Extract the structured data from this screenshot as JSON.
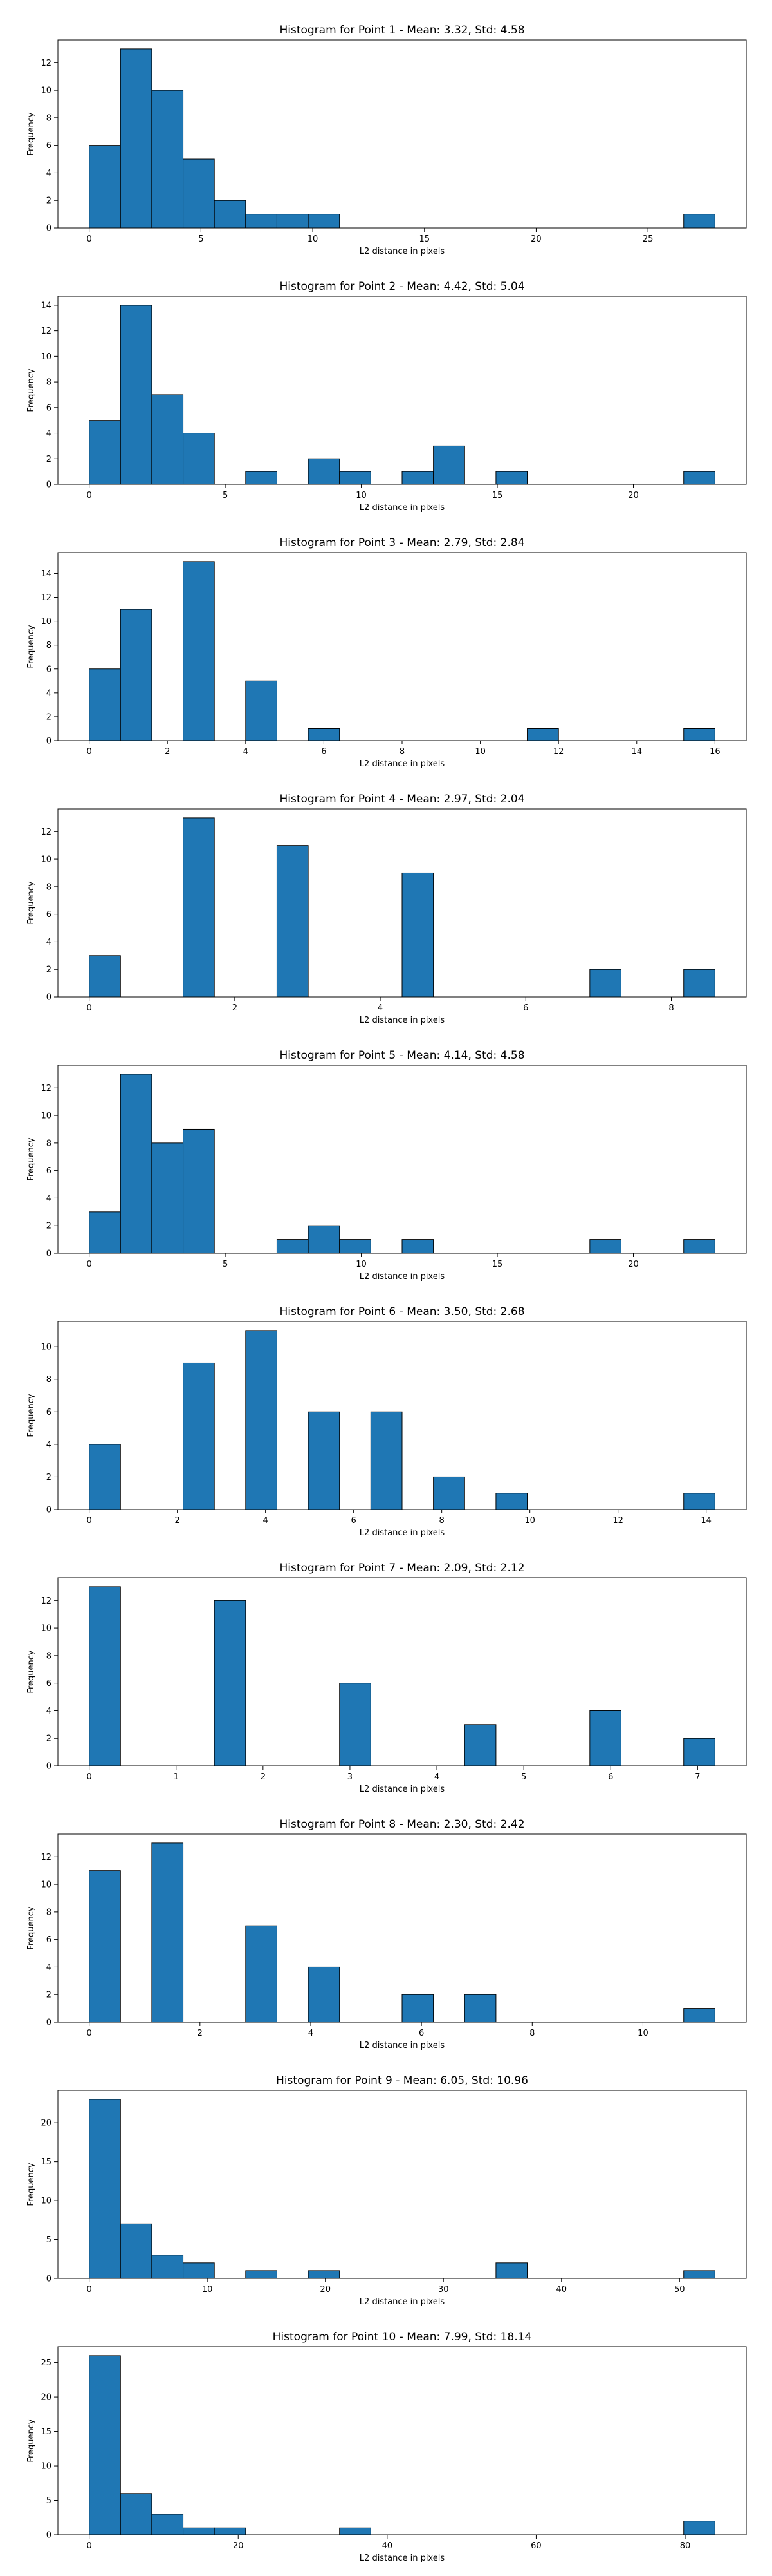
{
  "chart_data": [
    {
      "type": "bar",
      "title": "Histogram for Point 1 - Mean: 3.32, Std: 4.58",
      "xlabel": "L2 distance in pixels",
      "ylabel": "Frequency",
      "bin_edges": [
        0,
        1.4,
        2.8,
        4.2,
        5.6,
        7.0,
        8.4,
        9.8,
        11.2,
        12.6,
        14.0,
        15.4,
        16.8,
        18.2,
        19.6,
        21.0,
        22.4,
        23.8,
        25.2,
        26.6,
        28.0
      ],
      "counts": [
        6,
        13,
        10,
        5,
        2,
        1,
        1,
        1,
        0,
        0,
        0,
        0,
        0,
        0,
        0,
        0,
        0,
        0,
        0,
        1
      ],
      "xticks": [
        0,
        5,
        10,
        15,
        20,
        25
      ],
      "yticks": [
        0,
        2,
        4,
        6,
        8,
        10,
        12
      ],
      "xlim": [
        -1.4,
        29.4
      ],
      "ylim": [
        0,
        13.65
      ],
      "grid": false
    },
    {
      "type": "bar",
      "title": "Histogram for Point 2 - Mean: 4.42, Std: 5.04",
      "xlabel": "L2 distance in pixels",
      "ylabel": "Frequency",
      "bin_edges": [
        0,
        1.15,
        2.3,
        3.45,
        4.6,
        5.75,
        6.9,
        8.05,
        9.2,
        10.35,
        11.5,
        12.65,
        13.8,
        14.95,
        16.1,
        17.25,
        18.4,
        19.55,
        20.7,
        21.85,
        23.0
      ],
      "counts": [
        5,
        14,
        7,
        4,
        0,
        1,
        0,
        2,
        1,
        0,
        1,
        3,
        0,
        1,
        0,
        0,
        0,
        0,
        0,
        1
      ],
      "xticks": [
        0,
        5,
        10,
        15,
        20
      ],
      "yticks": [
        0,
        2,
        4,
        6,
        8,
        10,
        12,
        14
      ],
      "xlim": [
        -1.15,
        24.15
      ],
      "ylim": [
        0,
        14.7
      ],
      "grid": false
    },
    {
      "type": "bar",
      "title": "Histogram for Point 3 - Mean: 2.79, Std: 2.84",
      "xlabel": "L2 distance in pixels",
      "ylabel": "Frequency",
      "bin_edges": [
        0,
        0.8,
        1.6,
        2.4,
        3.2,
        4.0,
        4.8,
        5.6,
        6.4,
        7.2,
        8.0,
        8.8,
        9.6,
        10.4,
        11.2,
        12.0,
        12.8,
        13.6,
        14.4,
        15.2,
        16.0
      ],
      "counts": [
        6,
        11,
        0,
        15,
        0,
        5,
        0,
        1,
        0,
        0,
        0,
        0,
        0,
        0,
        1,
        0,
        0,
        0,
        0,
        1
      ],
      "xticks": [
        0,
        2,
        4,
        6,
        8,
        10,
        12,
        14,
        16
      ],
      "yticks": [
        0,
        2,
        4,
        6,
        8,
        10,
        12,
        14
      ],
      "xlim": [
        -0.8,
        16.8
      ],
      "ylim": [
        0,
        15.75
      ],
      "grid": false
    },
    {
      "type": "bar",
      "title": "Histogram for Point 4 - Mean: 2.97, Std: 2.04",
      "xlabel": "L2 distance in pixels",
      "ylabel": "Frequency",
      "bin_edges": [
        0,
        0.43,
        0.86,
        1.29,
        1.72,
        2.15,
        2.58,
        3.01,
        3.44,
        3.87,
        4.3,
        4.73,
        5.16,
        5.59,
        6.02,
        6.45,
        6.88,
        7.31,
        7.74,
        8.17,
        8.6
      ],
      "counts": [
        3,
        0,
        0,
        13,
        0,
        0,
        11,
        0,
        0,
        0,
        9,
        0,
        0,
        0,
        0,
        0,
        2,
        0,
        0,
        2
      ],
      "xticks": [
        0,
        2,
        4,
        6,
        8
      ],
      "yticks": [
        0,
        2,
        4,
        6,
        8,
        10,
        12
      ],
      "xlim": [
        -0.43,
        9.03
      ],
      "ylim": [
        0,
        13.65
      ],
      "grid": false
    },
    {
      "type": "bar",
      "title": "Histogram for Point 5 - Mean: 4.14, Std: 4.58",
      "xlabel": "L2 distance in pixels",
      "ylabel": "Frequency",
      "bin_edges": [
        0,
        1.15,
        2.3,
        3.45,
        4.6,
        5.75,
        6.9,
        8.05,
        9.2,
        10.35,
        11.5,
        12.65,
        13.8,
        14.95,
        16.1,
        17.25,
        18.4,
        19.55,
        20.7,
        21.85,
        23.0
      ],
      "counts": [
        3,
        13,
        8,
        9,
        0,
        0,
        1,
        2,
        1,
        0,
        1,
        0,
        0,
        0,
        0,
        0,
        1,
        0,
        0,
        1
      ],
      "xticks": [
        0,
        5,
        10,
        15,
        20
      ],
      "yticks": [
        0,
        2,
        4,
        6,
        8,
        10,
        12
      ],
      "xlim": [
        -1.15,
        24.15
      ],
      "ylim": [
        0,
        13.65
      ],
      "grid": false
    },
    {
      "type": "bar",
      "title": "Histogram for Point 6 - Mean: 3.50, Std: 2.68",
      "xlabel": "L2 distance in pixels",
      "ylabel": "Frequency",
      "bin_edges": [
        0,
        0.71,
        1.42,
        2.13,
        2.84,
        3.55,
        4.26,
        4.97,
        5.68,
        6.39,
        7.1,
        7.81,
        8.52,
        9.23,
        9.94,
        10.65,
        11.36,
        12.07,
        12.78,
        13.49,
        14.2
      ],
      "counts": [
        4,
        0,
        0,
        9,
        0,
        11,
        0,
        6,
        0,
        6,
        0,
        2,
        0,
        1,
        0,
        0,
        0,
        0,
        0,
        1
      ],
      "xticks": [
        0,
        2,
        4,
        6,
        8,
        10,
        12,
        14
      ],
      "yticks": [
        0,
        2,
        4,
        6,
        8,
        10
      ],
      "xlim": [
        -0.71,
        14.91
      ],
      "ylim": [
        0,
        11.55
      ],
      "grid": false
    },
    {
      "type": "bar",
      "title": "Histogram for Point 7 - Mean: 2.09, Std: 2.12",
      "xlabel": "L2 distance in pixels",
      "ylabel": "Frequency",
      "bin_edges": [
        0,
        0.36,
        0.72,
        1.08,
        1.44,
        1.8,
        2.16,
        2.52,
        2.88,
        3.24,
        3.6,
        3.96,
        4.32,
        4.68,
        5.04,
        5.4,
        5.76,
        6.12,
        6.48,
        6.84,
        7.2
      ],
      "counts": [
        13,
        0,
        0,
        0,
        12,
        0,
        0,
        0,
        6,
        0,
        0,
        0,
        3,
        0,
        0,
        0,
        4,
        0,
        0,
        2
      ],
      "xticks": [
        0,
        1,
        2,
        3,
        4,
        5,
        6,
        7
      ],
      "yticks": [
        0,
        2,
        4,
        6,
        8,
        10,
        12
      ],
      "xlim": [
        -0.36,
        7.56
      ],
      "ylim": [
        0,
        13.65
      ],
      "grid": false
    },
    {
      "type": "bar",
      "title": "Histogram for Point 8 - Mean: 2.30, Std: 2.42",
      "xlabel": "L2 distance in pixels",
      "ylabel": "Frequency",
      "bin_edges": [
        0,
        0.565,
        1.13,
        1.695,
        2.26,
        2.825,
        3.39,
        3.955,
        4.52,
        5.085,
        5.65,
        6.215,
        6.78,
        7.345,
        7.91,
        8.475,
        9.04,
        9.605,
        10.17,
        10.735,
        11.3
      ],
      "counts": [
        11,
        0,
        13,
        0,
        0,
        7,
        0,
        4,
        0,
        0,
        2,
        0,
        2,
        0,
        0,
        0,
        0,
        0,
        0,
        1
      ],
      "xticks": [
        0,
        2,
        4,
        6,
        8,
        10
      ],
      "yticks": [
        0,
        2,
        4,
        6,
        8,
        10,
        12
      ],
      "xlim": [
        -0.565,
        11.865
      ],
      "ylim": [
        0,
        13.65
      ],
      "grid": false
    },
    {
      "type": "bar",
      "title": "Histogram for Point 9 - Mean: 6.05, Std: 10.96",
      "xlabel": "L2 distance in pixels",
      "ylabel": "Frequency",
      "bin_edges": [
        0,
        2.65,
        5.3,
        7.95,
        10.6,
        13.25,
        15.9,
        18.55,
        21.2,
        23.85,
        26.5,
        29.15,
        31.8,
        34.45,
        37.1,
        39.75,
        42.4,
        45.05,
        47.7,
        50.35,
        53.0
      ],
      "counts": [
        23,
        7,
        3,
        2,
        0,
        1,
        0,
        1,
        0,
        0,
        0,
        0,
        0,
        2,
        0,
        0,
        0,
        0,
        0,
        1
      ],
      "xticks": [
        0,
        10,
        20,
        30,
        40,
        50
      ],
      "yticks": [
        0,
        5,
        10,
        15,
        20
      ],
      "xlim": [
        -2.65,
        55.65
      ],
      "ylim": [
        0,
        24.15
      ],
      "grid": false
    },
    {
      "type": "bar",
      "title": "Histogram for Point 10 - Mean: 7.99, Std: 18.14",
      "xlabel": "L2 distance in pixels",
      "ylabel": "Frequency",
      "bin_edges": [
        0,
        4.2,
        8.4,
        12.6,
        16.8,
        21.0,
        25.2,
        29.4,
        33.6,
        37.8,
        42.0,
        46.2,
        50.4,
        54.6,
        58.8,
        63.0,
        67.2,
        71.4,
        75.6,
        79.8,
        84.0
      ],
      "counts": [
        26,
        6,
        3,
        1,
        1,
        0,
        0,
        0,
        1,
        0,
        0,
        0,
        0,
        0,
        0,
        0,
        0,
        0,
        0,
        2
      ],
      "xticks": [
        0,
        20,
        40,
        60,
        80
      ],
      "yticks": [
        0,
        5,
        10,
        15,
        20,
        25
      ],
      "xlim": [
        -4.2,
        88.2
      ],
      "ylim": [
        0,
        27.3
      ],
      "grid": false
    }
  ]
}
